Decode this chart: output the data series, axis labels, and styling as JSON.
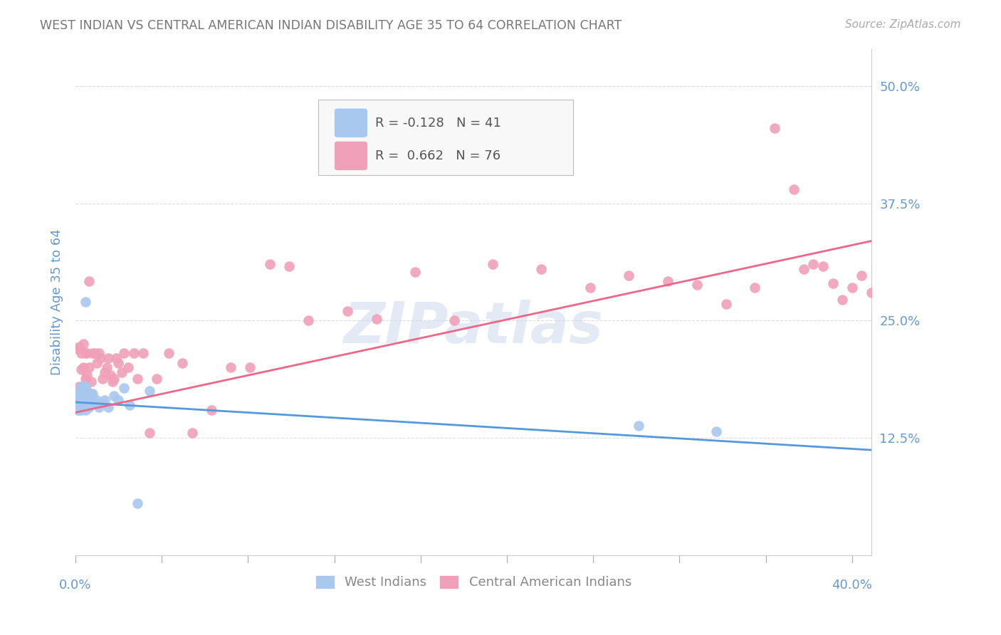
{
  "title": "WEST INDIAN VS CENTRAL AMERICAN INDIAN DISABILITY AGE 35 TO 64 CORRELATION CHART",
  "source": "Source: ZipAtlas.com",
  "ylabel": "Disability Age 35 to 64",
  "ytick_labels": [
    "12.5%",
    "25.0%",
    "37.5%",
    "50.0%"
  ],
  "ytick_values": [
    0.125,
    0.25,
    0.375,
    0.5
  ],
  "ylim": [
    0.0,
    0.54
  ],
  "xlim": [
    0.0,
    0.41
  ],
  "west_indian_R": -0.128,
  "west_indian_N": 41,
  "central_american_R": 0.662,
  "central_american_N": 76,
  "west_indian_color": "#a8c8f0",
  "central_american_color": "#f0a0b8",
  "west_indian_line_color": "#5599dd",
  "central_american_line_color": "#ee6688",
  "axis_label_color": "#6699cc",
  "grid_color": "#dddddd",
  "background_color": "#ffffff",
  "west_line_x0": 0.0,
  "west_line_y0": 0.163,
  "west_line_x1": 0.41,
  "west_line_y1": 0.112,
  "central_line_x0": 0.0,
  "central_line_y0": 0.152,
  "central_line_x1": 0.41,
  "central_line_y1": 0.335,
  "west_indian_x": [
    0.0,
    0.001,
    0.001,
    0.001,
    0.001,
    0.002,
    0.002,
    0.002,
    0.002,
    0.002,
    0.003,
    0.003,
    0.003,
    0.003,
    0.004,
    0.004,
    0.004,
    0.005,
    0.005,
    0.005,
    0.005,
    0.006,
    0.006,
    0.007,
    0.007,
    0.008,
    0.009,
    0.01,
    0.011,
    0.012,
    0.014,
    0.015,
    0.017,
    0.02,
    0.022,
    0.025,
    0.028,
    0.032,
    0.29,
    0.33,
    0.038
  ],
  "west_indian_y": [
    0.165,
    0.17,
    0.165,
    0.16,
    0.155,
    0.175,
    0.17,
    0.165,
    0.16,
    0.155,
    0.18,
    0.175,
    0.165,
    0.155,
    0.175,
    0.168,
    0.16,
    0.27,
    0.18,
    0.168,
    0.155,
    0.175,
    0.162,
    0.172,
    0.158,
    0.168,
    0.172,
    0.162,
    0.165,
    0.158,
    0.162,
    0.165,
    0.158,
    0.17,
    0.165,
    0.178,
    0.16,
    0.055,
    0.138,
    0.132,
    0.175
  ],
  "central_american_x": [
    0.0,
    0.001,
    0.001,
    0.001,
    0.002,
    0.002,
    0.002,
    0.003,
    0.003,
    0.003,
    0.004,
    0.004,
    0.004,
    0.005,
    0.005,
    0.006,
    0.006,
    0.006,
    0.007,
    0.007,
    0.008,
    0.008,
    0.009,
    0.01,
    0.011,
    0.012,
    0.013,
    0.014,
    0.015,
    0.016,
    0.017,
    0.018,
    0.019,
    0.02,
    0.021,
    0.022,
    0.024,
    0.025,
    0.027,
    0.03,
    0.032,
    0.035,
    0.038,
    0.042,
    0.048,
    0.055,
    0.06,
    0.07,
    0.08,
    0.09,
    0.1,
    0.11,
    0.12,
    0.14,
    0.155,
    0.175,
    0.195,
    0.215,
    0.24,
    0.265,
    0.285,
    0.305,
    0.32,
    0.335,
    0.35,
    0.36,
    0.37,
    0.375,
    0.38,
    0.385,
    0.39,
    0.395,
    0.4,
    0.405,
    0.41,
    0.415
  ],
  "central_american_y": [
    0.162,
    0.22,
    0.172,
    0.158,
    0.222,
    0.18,
    0.162,
    0.215,
    0.198,
    0.172,
    0.225,
    0.2,
    0.172,
    0.215,
    0.188,
    0.215,
    0.192,
    0.172,
    0.292,
    0.2,
    0.185,
    0.172,
    0.215,
    0.215,
    0.205,
    0.215,
    0.21,
    0.188,
    0.195,
    0.2,
    0.21,
    0.192,
    0.185,
    0.188,
    0.21,
    0.205,
    0.195,
    0.215,
    0.2,
    0.215,
    0.188,
    0.215,
    0.13,
    0.188,
    0.215,
    0.205,
    0.13,
    0.155,
    0.2,
    0.2,
    0.31,
    0.308,
    0.25,
    0.26,
    0.252,
    0.302,
    0.25,
    0.31,
    0.305,
    0.285,
    0.298,
    0.292,
    0.288,
    0.268,
    0.285,
    0.455,
    0.39,
    0.305,
    0.31,
    0.308,
    0.29,
    0.272,
    0.285,
    0.298,
    0.28,
    0.268
  ]
}
